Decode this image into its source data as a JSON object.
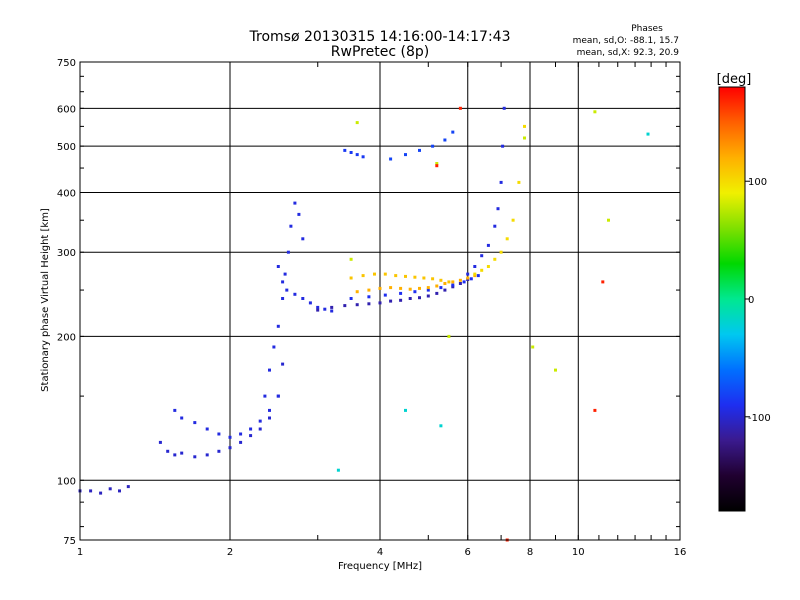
{
  "chart_data": {
    "type": "scatter",
    "title": "Tromsø 20130315 14:16:00-14:17:43",
    "subtitle": "RwPretec (8p)",
    "xlabel": "Frequency [MHz]",
    "ylabel": "Stationary phase Virtual Height [km]",
    "x_scale": "log2",
    "y_scale": "log",
    "xlim": [
      1,
      16
    ],
    "ylim": [
      75,
      750
    ],
    "x_ticks": [
      1,
      2,
      4,
      6,
      8,
      10,
      16
    ],
    "y_ticks": [
      75,
      100,
      200,
      300,
      400,
      500,
      600,
      750
    ],
    "grid": true,
    "stats": {
      "heading": "Phases",
      "o_line": "mean, sd,O: -88.1, 15.7",
      "x_line": "mean, sd,X:  92.3, 20.9"
    },
    "colorbar": {
      "label": "[deg]",
      "min": -180,
      "max": 180,
      "ticks": [
        100,
        0,
        -100
      ],
      "stops": [
        "#000000",
        "#200030",
        "#3a1a8e",
        "#1e2ef0",
        "#0070ff",
        "#00c8f0",
        "#00e890",
        "#00d800",
        "#7fe000",
        "#f0f000",
        "#ffb000",
        "#ff6000",
        "#ff0000"
      ]
    },
    "traces": [
      {
        "name": "",
        "phase": -105,
        "x": [
          1.0,
          1.05,
          1.1,
          1.15,
          1.2,
          1.25
        ],
        "y": [
          95,
          95,
          94,
          96,
          95,
          97
        ]
      },
      {
        "name": "",
        "phase": -100,
        "x": [
          1.45,
          1.5,
          1.55,
          1.6,
          1.7,
          1.8,
          1.9,
          2.0,
          2.1,
          2.2,
          2.3,
          2.4,
          2.5,
          2.55
        ],
        "y": [
          120,
          115,
          113,
          114,
          112,
          113,
          115,
          117,
          120,
          124,
          128,
          135,
          150,
          175
        ]
      },
      {
        "name": "",
        "phase": -95,
        "x": [
          1.55,
          1.6,
          1.7,
          1.8,
          1.9,
          2.0,
          2.1,
          2.2,
          2.3,
          2.4,
          2.5
        ],
        "y": [
          140,
          135,
          132,
          128,
          125,
          123,
          125,
          128,
          133,
          140,
          150
        ]
      },
      {
        "name": "",
        "phase": -95,
        "x": [
          2.35,
          2.4,
          2.45,
          2.5,
          2.55,
          2.58,
          2.62,
          2.65,
          2.7,
          2.75,
          2.8
        ],
        "y": [
          150,
          170,
          190,
          210,
          240,
          270,
          300,
          340,
          380,
          360,
          320
        ]
      },
      {
        "name": "",
        "phase": -95,
        "x": [
          2.5,
          2.55,
          2.6,
          2.7,
          2.8,
          2.9,
          3.0,
          3.1,
          3.2
        ],
        "y": [
          280,
          260,
          250,
          245,
          240,
          235,
          230,
          228,
          226
        ]
      },
      {
        "name": "",
        "phase": -110,
        "x": [
          3.0,
          3.2,
          3.4,
          3.6,
          3.8,
          4.0,
          4.2,
          4.4,
          4.6,
          4.8,
          5.0,
          5.2,
          5.4,
          5.6,
          5.8,
          6.0
        ],
        "y": [
          227,
          230,
          232,
          233,
          234,
          235,
          237,
          238,
          240,
          241,
          243,
          246,
          250,
          254,
          258,
          263
        ]
      },
      {
        "name": "",
        "phase": -90,
        "x": [
          3.5,
          3.8,
          4.1,
          4.4,
          4.7,
          5.0,
          5.3,
          5.6,
          5.9,
          6.1,
          6.3
        ],
        "y": [
          240,
          242,
          244,
          246,
          248,
          250,
          253,
          256,
          260,
          264,
          268
        ]
      },
      {
        "name": "",
        "phase": 110,
        "x": [
          3.5,
          3.7,
          3.9,
          4.1,
          4.3,
          4.5,
          4.7,
          4.9,
          5.1,
          5.3,
          5.5
        ],
        "y": [
          265,
          268,
          270,
          270,
          268,
          267,
          266,
          265,
          264,
          262,
          260
        ]
      },
      {
        "name": "",
        "phase": 120,
        "x": [
          3.6,
          3.8,
          4.0,
          4.2,
          4.4,
          4.6,
          4.8,
          5.0,
          5.2,
          5.4,
          5.6,
          5.8,
          6.0,
          6.2
        ],
        "y": [
          248,
          250,
          252,
          253,
          252,
          251,
          252,
          253,
          255,
          258,
          260,
          262,
          265,
          268
        ]
      },
      {
        "name": "",
        "phase": 100,
        "x": [
          6.2,
          6.4,
          6.6,
          6.8,
          7.0,
          7.2,
          7.4,
          7.6,
          7.8
        ],
        "y": [
          270,
          275,
          280,
          290,
          300,
          320,
          350,
          420,
          550
        ]
      },
      {
        "name": "",
        "phase": -95,
        "x": [
          6.0,
          6.2,
          6.4,
          6.6,
          6.8,
          6.9,
          7.0,
          7.05,
          7.1
        ],
        "y": [
          270,
          280,
          295,
          310,
          340,
          370,
          420,
          500,
          600
        ]
      },
      {
        "name": "",
        "phase": -85,
        "x": [
          3.4,
          3.5,
          3.6,
          3.7
        ],
        "y": [
          490,
          485,
          480,
          475
        ]
      },
      {
        "name": "",
        "phase": -80,
        "x": [
          4.2,
          4.5,
          4.8,
          5.1,
          5.4,
          5.6
        ],
        "y": [
          470,
          480,
          490,
          500,
          515,
          535
        ]
      },
      {
        "name": "",
        "phase": 80,
        "x": [
          3.6,
          5.2,
          8.1,
          10.8,
          11.5,
          9.0,
          7.8,
          5.5,
          3.5
        ],
        "y": [
          560,
          460,
          190,
          590,
          350,
          170,
          520,
          200,
          290
        ]
      },
      {
        "name": "",
        "phase": -20,
        "x": [
          4.5,
          5.3,
          3.3,
          13.8
        ],
        "y": [
          140,
          130,
          105,
          530
        ]
      },
      {
        "name": "",
        "phase": 170,
        "x": [
          5.2,
          10.8,
          5.8,
          11.2,
          7.2
        ],
        "y": [
          455,
          140,
          600,
          260,
          75
        ]
      }
    ]
  }
}
